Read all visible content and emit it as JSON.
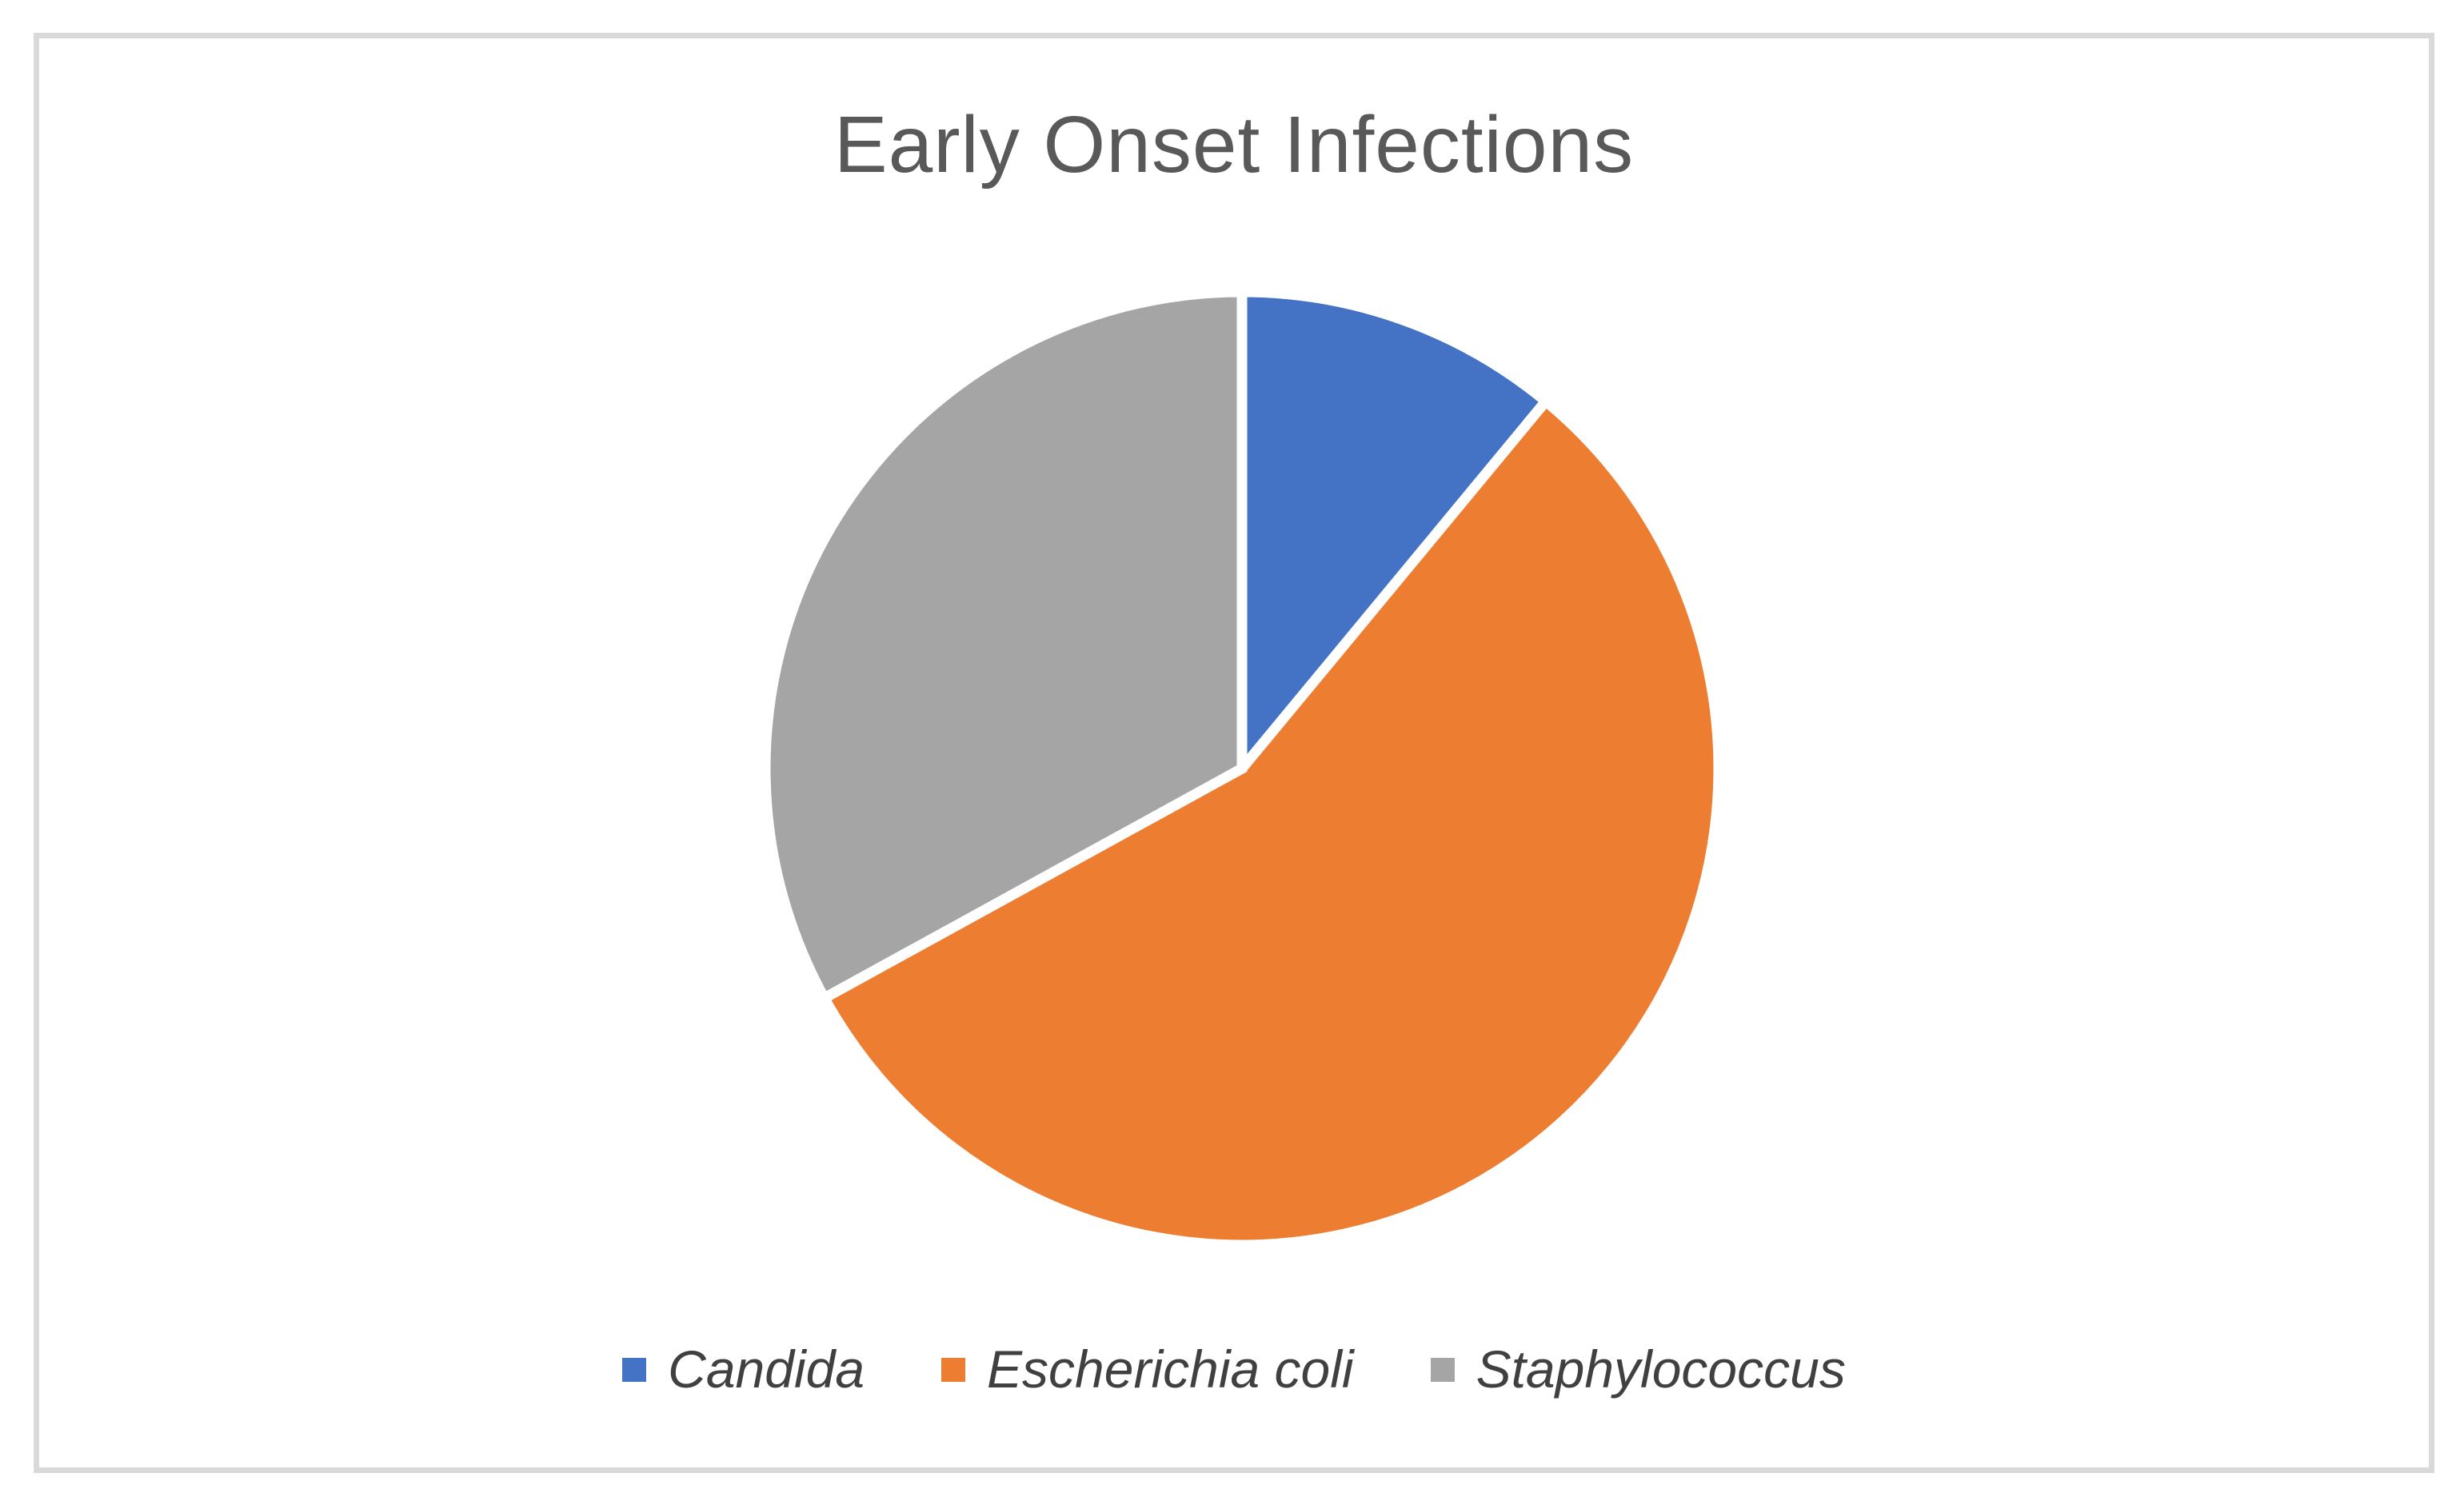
{
  "page": {
    "background_color": "#FFFFFF",
    "frame_border_color": "#D9D9D9"
  },
  "chart_data": {
    "type": "pie",
    "title": "Early Onset Infections",
    "categories": [
      "Candida",
      "Escherichia coli",
      "Staphylococcus"
    ],
    "values_percent": [
      11,
      56,
      33
    ],
    "colors": [
      "#4472C4",
      "#ED7D31",
      "#A5A5A5"
    ],
    "start_angle_deg": 0,
    "direction": "clockwise",
    "slice_border_color": "#FFFFFF",
    "legend_position": "bottom",
    "title_color": "#595959",
    "legend_text_color": "#404040",
    "data_labels": "none",
    "axes": "none",
    "grid": "off"
  }
}
